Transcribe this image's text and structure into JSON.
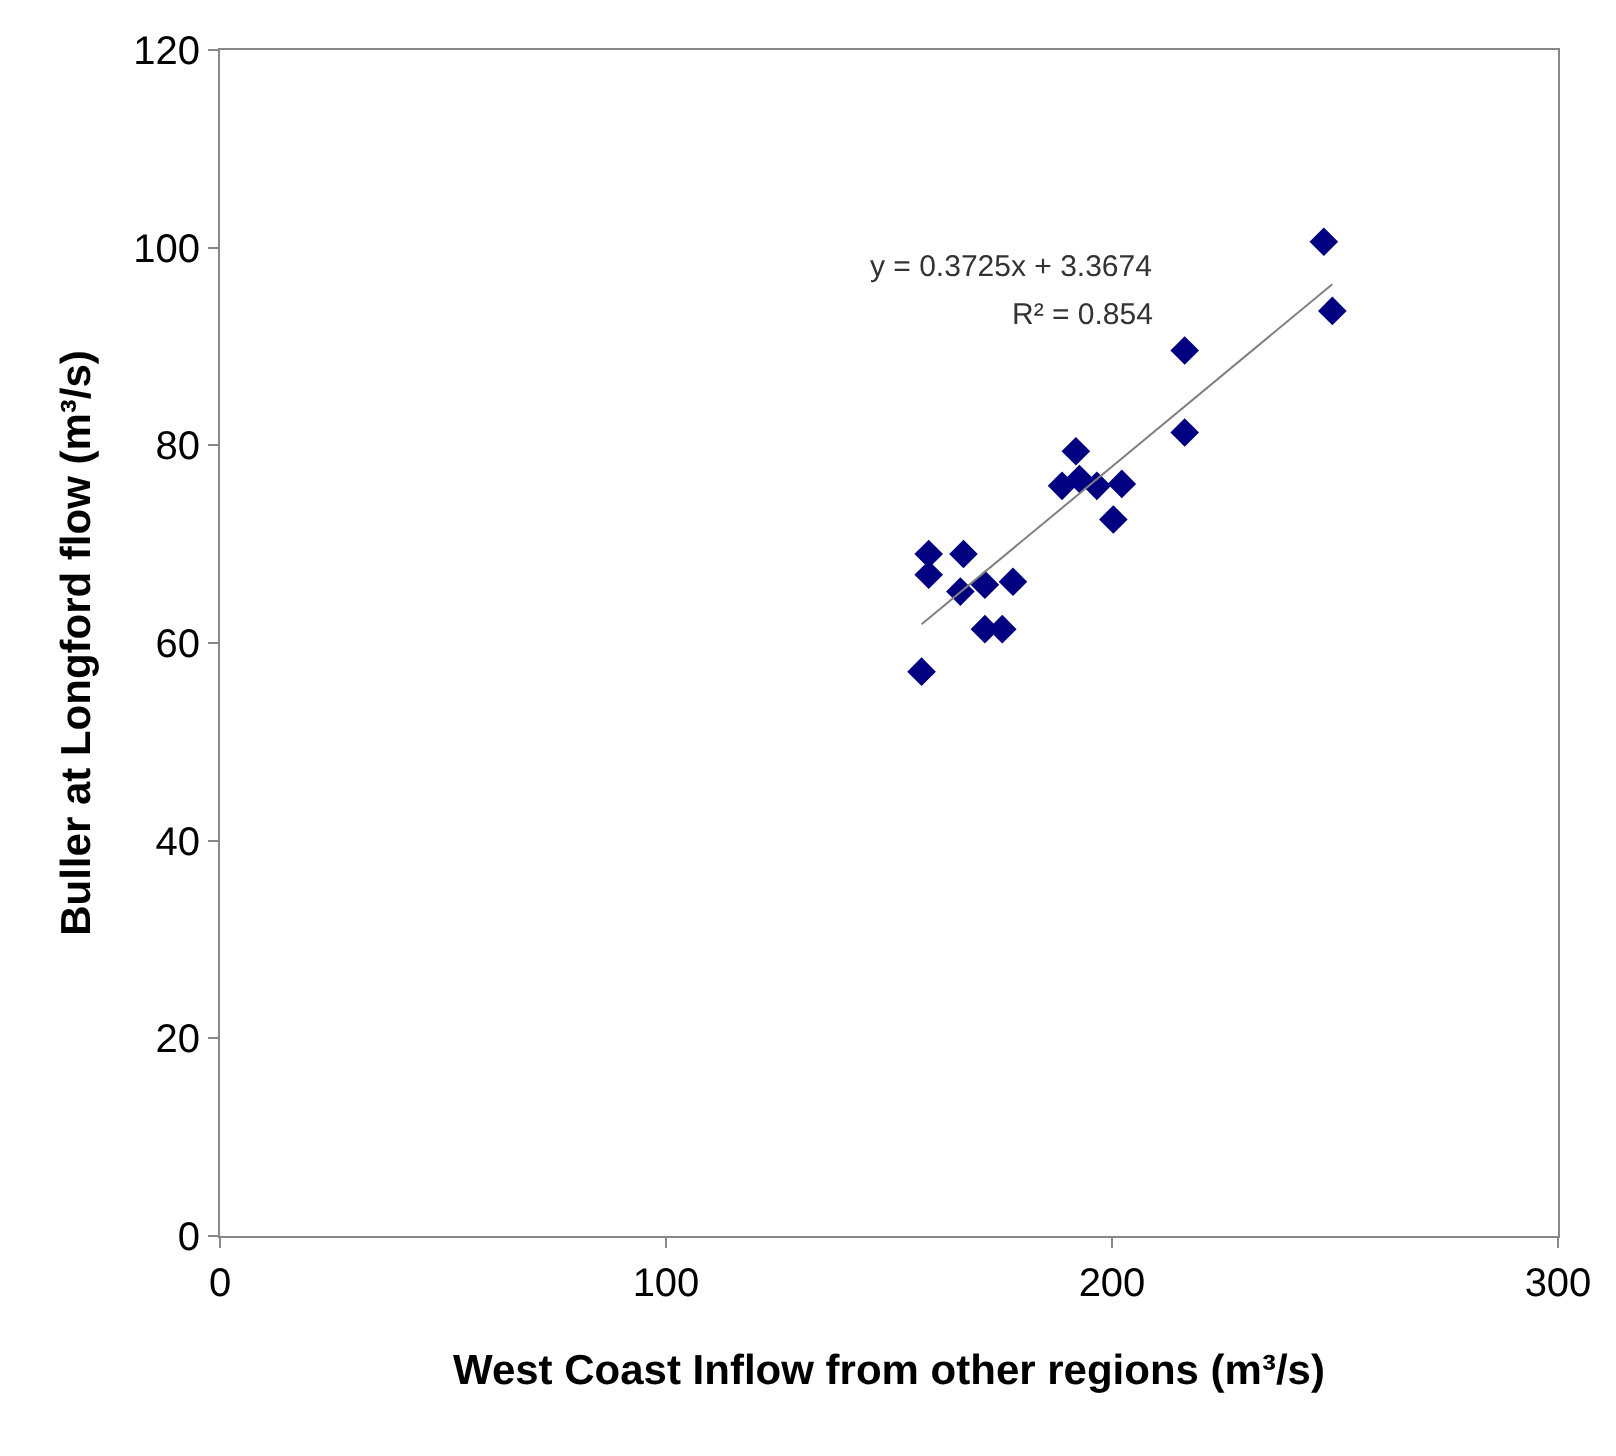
{
  "chart_data": {
    "type": "scatter",
    "xlabel": "West Coast Inflow from other regions (m³/s)",
    "ylabel": "Buller at Longford flow (m³/s)",
    "xlim": [
      0,
      300
    ],
    "xticks": [
      0,
      100,
      200,
      300
    ],
    "ylim": [
      0,
      120
    ],
    "yticks": [
      0,
      20,
      40,
      60,
      80,
      100,
      120
    ],
    "marker": "diamond",
    "series": [
      {
        "color": "#000080",
        "x": [
          157.3,
          158.9,
          158.9,
          166.7,
          166.0,
          171.5,
          177.8,
          171.5,
          175.4,
          191.9,
          188.8,
          192.7,
          196.6,
          202.2,
          200.3,
          216.3,
          216.3,
          247.5,
          249.4
        ],
        "values": [
          57.1,
          69.0,
          66.9,
          69.0,
          65.2,
          65.9,
          66.2,
          61.4,
          61.4,
          79.4,
          75.9,
          76.6,
          75.9,
          76.1,
          72.5,
          89.6,
          81.3,
          100.6,
          93.6
        ]
      },
      {
        "type": "line",
        "color": "#808080",
        "marker": "none",
        "x": [
          157.3,
          249.4
        ],
        "values": [
          61.9,
          96.3
        ]
      }
    ],
    "annotations": [
      "y = 0.3725x + 3.3674",
      "R² = 0.854"
    ]
  }
}
